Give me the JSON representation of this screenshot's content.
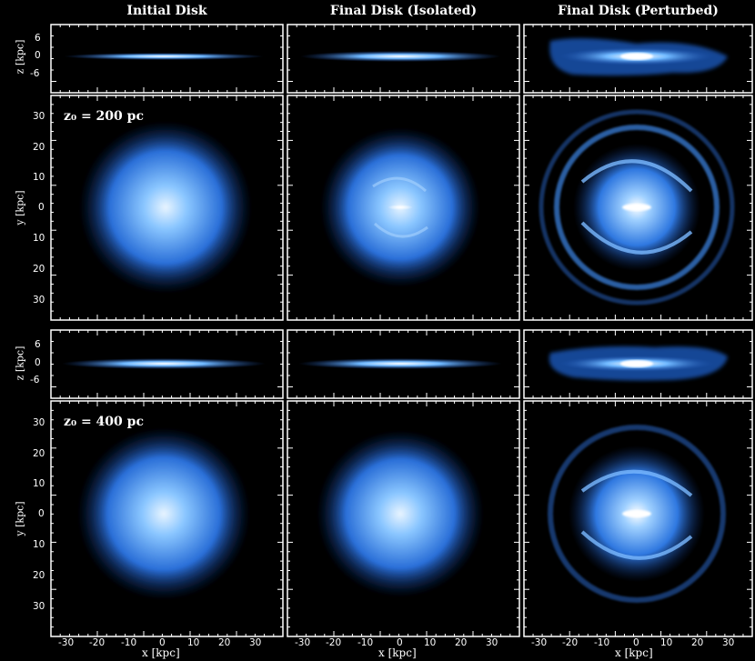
{
  "column_titles": [
    "Initial Disk",
    "Final Disk (Isolated)",
    "Final Disk (Perturbed)"
  ],
  "axis_labels": {
    "edge_on_y": "z [kpc]",
    "face_on_y": "y [kpc]",
    "x": "x [kpc]"
  },
  "edge_on_ticks": [
    "6",
    "0",
    "-6"
  ],
  "face_on_ticks": [
    "30",
    "20",
    "10",
    "0",
    "10",
    "20",
    "30"
  ],
  "x_ticks": [
    "-30",
    "-20",
    "-10",
    "0",
    "10",
    "20",
    "30"
  ],
  "annotations": [
    "z₀ = 200 pc",
    "z₀ = 400 pc"
  ],
  "colors": {
    "glow": "#5fb0ff",
    "core": "#e8f4ff",
    "frame": "#ffffff",
    "background": "#000000"
  }
}
